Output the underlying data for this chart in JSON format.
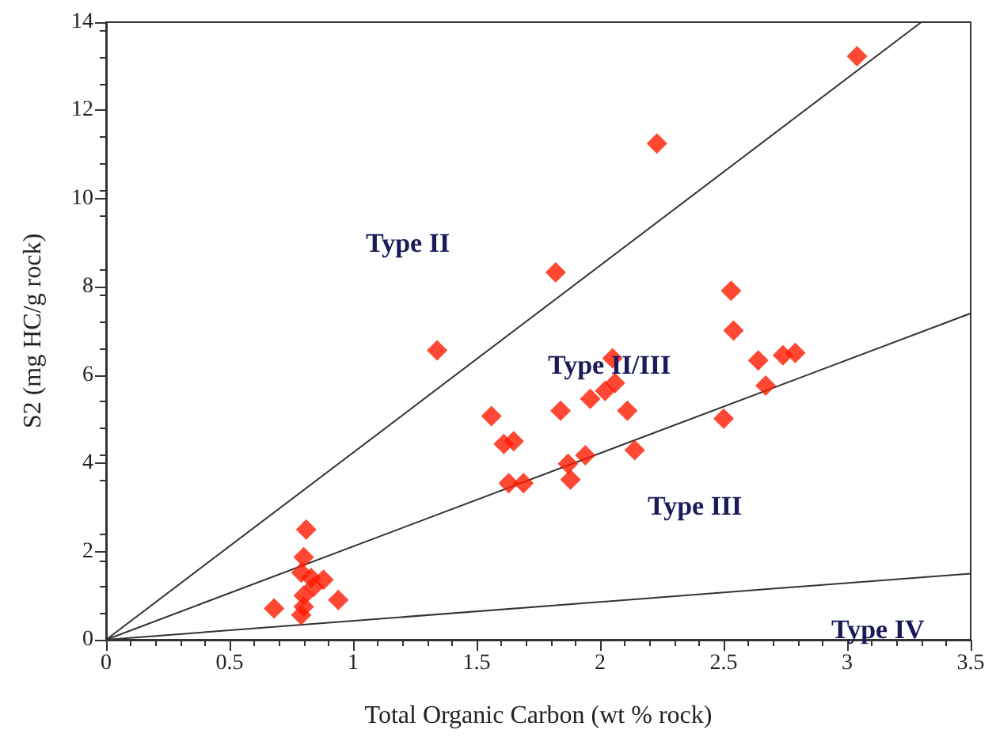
{
  "chart_data": {
    "type": "scatter",
    "xlabel": "Total Organic Carbon (wt % rock)",
    "ylabel": "S2 (mg HC/g rock)",
    "xlim": [
      0,
      3.5
    ],
    "xticks": [
      0,
      0.5,
      1,
      1.5,
      2,
      2.5,
      3,
      3.5
    ],
    "ylim": [
      0,
      14
    ],
    "yticks": [
      0,
      2,
      4,
      6,
      8,
      10,
      12,
      14
    ],
    "grid": false,
    "series": [
      {
        "type": "line",
        "marker": "none",
        "color": "#333333",
        "x": [
          0,
          3.3
        ],
        "values": [
          0,
          14
        ]
      },
      {
        "type": "line",
        "marker": "none",
        "color": "#333333",
        "x": [
          0,
          3.5
        ],
        "values": [
          0,
          7.4
        ]
      },
      {
        "type": "line",
        "marker": "none",
        "color": "#333333",
        "x": [
          0,
          3.5
        ],
        "values": [
          0,
          1.5
        ]
      },
      {
        "marker": "diamond",
        "color": "#ff1a00",
        "x": [
          0.81,
          0.8,
          0.79,
          0.83,
          0.88,
          0.84,
          0.8,
          0.94,
          0.68,
          0.79,
          0.8,
          1.82,
          1.34,
          2.53,
          2.54,
          2.64,
          2.74,
          2.79,
          2.67,
          2.5,
          2.05,
          2.06,
          2.02,
          1.96,
          2.11,
          1.84,
          1.56,
          1.61,
          1.65,
          2.14,
          1.94,
          1.87,
          1.88,
          1.63,
          1.69,
          3.04,
          2.23
        ],
        "values": [
          2.5,
          1.87,
          1.52,
          1.4,
          1.36,
          1.2,
          1.0,
          0.9,
          0.71,
          0.56,
          0.75,
          8.33,
          6.56,
          7.91,
          7.01,
          6.33,
          6.45,
          6.5,
          5.76,
          5.01,
          6.38,
          5.82,
          5.64,
          5.46,
          5.19,
          5.19,
          5.07,
          4.44,
          4.5,
          4.3,
          4.18,
          3.99,
          3.63,
          3.55,
          3.55,
          13.23,
          11.25
        ]
      }
    ],
    "annotations": [
      "Type II",
      "Type II/III",
      "Type III",
      "Type IV"
    ]
  }
}
